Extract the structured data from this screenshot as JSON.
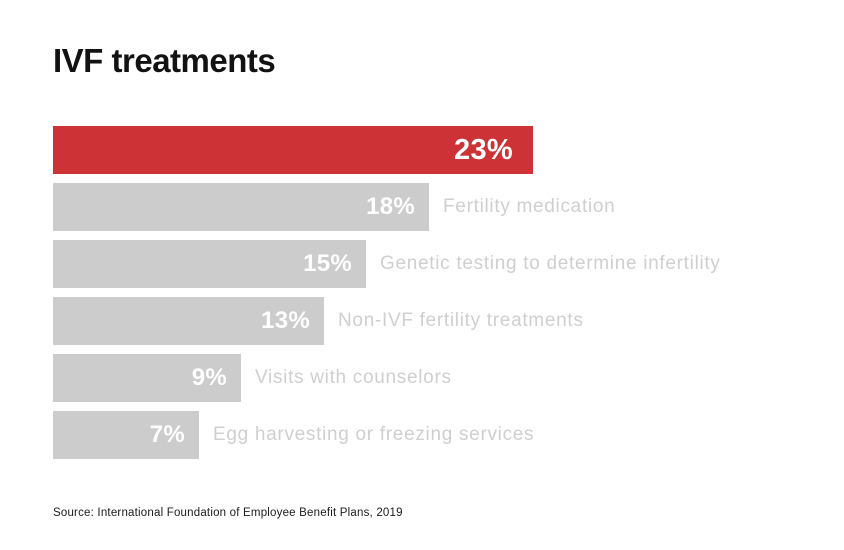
{
  "header": {
    "title": "IVF treatments"
  },
  "chart_data": {
    "type": "bar",
    "orientation": "horizontal",
    "title": "IVF treatments",
    "unit": "%",
    "xlim": [
      0,
      23
    ],
    "grid": false,
    "legend": "none",
    "categories": [
      "IVF treatments",
      "Fertility medication",
      "Genetic testing to determine infertility",
      "Non-IVF fertility treatments",
      "Visits with counselors",
      "Egg harvesting or freezing services"
    ],
    "values": [
      23,
      18,
      15,
      13,
      9,
      7
    ],
    "value_labels": [
      "23%",
      "18%",
      "15%",
      "13%",
      "9%",
      "7%"
    ],
    "inline_category_labels": [
      false,
      true,
      true,
      true,
      true,
      true
    ],
    "highlight_index": 0,
    "colors": {
      "highlight_bar": "#cd3236",
      "bar": "#cccccc",
      "value_text": "#ffffff",
      "category_text": "#cfcfcf",
      "title_text": "#121212",
      "source_text": "#1b1b1b",
      "background": "#ffffff"
    }
  },
  "footer": {
    "source": "Source: International Foundation of Employee Benefit Plans, 2019"
  }
}
